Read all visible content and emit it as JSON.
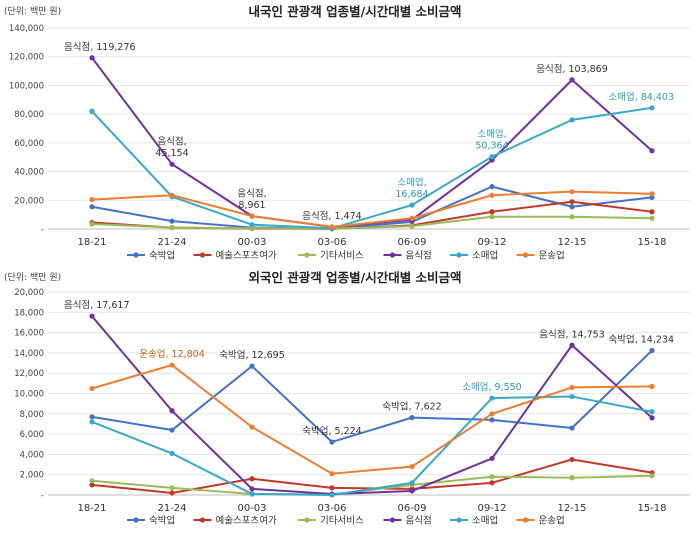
{
  "chart_data": [
    {
      "type": "line",
      "title": "내국인 관광객 업종별/시간대별 소비금액",
      "unit_label": "(단위: 백만 원)",
      "categories": [
        "18-21",
        "21-24",
        "00-03",
        "03-06",
        "06-09",
        "09-12",
        "12-15",
        "15-18"
      ],
      "ylim": [
        0,
        140000
      ],
      "yticks": [
        0,
        20000,
        40000,
        60000,
        80000,
        100000,
        120000,
        140000
      ],
      "ytick_labels": [
        "-",
        "20,000",
        "40,000",
        "60,000",
        "80,000",
        "100,000",
        "120,000",
        "140,000"
      ],
      "grid": true,
      "legend_position": "bottom",
      "series": [
        {
          "name": "숙박업",
          "color": "#4472c4",
          "values": [
            15500,
            5500,
            1000,
            300,
            5000,
            29500,
            15500,
            22000
          ]
        },
        {
          "name": "예술스포츠여가",
          "color": "#c0392b",
          "values": [
            4500,
            1000,
            300,
            100,
            2500,
            12000,
            19000,
            12000
          ]
        },
        {
          "name": "기타서비스",
          "color": "#9bbb59",
          "values": [
            3500,
            1000,
            500,
            200,
            2000,
            8500,
            8500,
            7500
          ]
        },
        {
          "name": "음식점",
          "color": "#7030a0",
          "values": [
            119276,
            45154,
            8961,
            1474,
            6500,
            48000,
            103869,
            54500
          ]
        },
        {
          "name": "소매업",
          "color": "#38a8c9",
          "values": [
            82000,
            22500,
            3000,
            500,
            16684,
            50364,
            76000,
            84403
          ]
        },
        {
          "name": "운송업",
          "color": "#ed7d31",
          "values": [
            20500,
            23500,
            9000,
            1500,
            7500,
            23500,
            26000,
            24500
          ]
        }
      ],
      "annotations": [
        {
          "category": "18-21",
          "value": 119276,
          "color": "#333333",
          "lines": [
            "음식점, 119,276"
          ]
        },
        {
          "category": "21-24",
          "value": 45154,
          "color": "#333333",
          "lines": [
            "음식점,",
            "45,154"
          ]
        },
        {
          "category": "00-03",
          "value": 8961,
          "color": "#333333",
          "lines": [
            "음식점,",
            "8,961"
          ]
        },
        {
          "category": "03-06",
          "value": 1474,
          "color": "#333333",
          "lines": [
            "음식점, 1,474"
          ]
        },
        {
          "category": "06-09",
          "value": 16684,
          "color": "#2e9ab8",
          "lines": [
            "소매업,",
            "16,684"
          ]
        },
        {
          "category": "09-12",
          "value": 50364,
          "color": "#2e9ab8",
          "lines": [
            "소매업,",
            "50,364"
          ]
        },
        {
          "category": "12-15",
          "value": 103869,
          "color": "#333333",
          "lines": [
            "음식점, 103,869"
          ]
        },
        {
          "category": "15-18",
          "value": 84403,
          "color": "#2e9ab8",
          "lines": [
            "소매업, 84,403"
          ]
        }
      ]
    },
    {
      "type": "line",
      "title": "외국인 관광객 업종별/시간대별 소비금액",
      "unit_label": "(단위: 백만 원)",
      "categories": [
        "18-21",
        "21-24",
        "00-03",
        "03-06",
        "06-09",
        "09-12",
        "12-15",
        "15-18"
      ],
      "ylim": [
        0,
        20000
      ],
      "yticks": [
        0,
        2000,
        4000,
        6000,
        8000,
        10000,
        12000,
        14000,
        16000,
        18000,
        20000
      ],
      "ytick_labels": [
        "-",
        "2,000",
        "4,000",
        "6,000",
        "8,000",
        "10,000",
        "12,000",
        "14,000",
        "16,000",
        "18,000",
        "20,000"
      ],
      "grid": true,
      "legend_position": "bottom",
      "series": [
        {
          "name": "숙박업",
          "color": "#4472c4",
          "values": [
            7700,
            6400,
            12695,
            5224,
            7622,
            7400,
            6600,
            14234
          ]
        },
        {
          "name": "예술스포츠여가",
          "color": "#c0392b",
          "values": [
            1000,
            200,
            1600,
            700,
            600,
            1200,
            3500,
            2200
          ]
        },
        {
          "name": "기타서비스",
          "color": "#9bbb59",
          "values": [
            1400,
            700,
            100,
            50,
            1000,
            1800,
            1700,
            1900
          ]
        },
        {
          "name": "음식점",
          "color": "#7030a0",
          "values": [
            17617,
            8300,
            600,
            100,
            400,
            3600,
            14753,
            7600
          ]
        },
        {
          "name": "소매업",
          "color": "#38a8c9",
          "values": [
            7200,
            4100,
            100,
            0,
            1200,
            9550,
            9700,
            8200
          ]
        },
        {
          "name": "운송업",
          "color": "#ed7d31",
          "values": [
            10500,
            12804,
            6700,
            2100,
            2800,
            8000,
            10600,
            10700
          ]
        }
      ],
      "annotations": [
        {
          "category": "18-21",
          "value": 17617,
          "color": "#333333",
          "lines": [
            "음식점, 17,617"
          ]
        },
        {
          "category": "21-24",
          "value": 12804,
          "color": "#c0641c",
          "lines": [
            "운송업, 12,804"
          ]
        },
        {
          "category": "00-03",
          "value": 12695,
          "color": "#333333",
          "lines": [
            "숙박업, 12,695"
          ]
        },
        {
          "category": "03-06",
          "value": 5224,
          "color": "#333333",
          "lines": [
            "숙박업, 5,224"
          ]
        },
        {
          "category": "06-09",
          "value": 7622,
          "color": "#333333",
          "lines": [
            "숙박업, 7,622"
          ]
        },
        {
          "category": "09-12",
          "value": 9550,
          "color": "#2e9ab8",
          "lines": [
            "소매업, 9,550"
          ]
        },
        {
          "category": "12-15",
          "value": 14753,
          "color": "#333333",
          "lines": [
            "음식점, 14,753"
          ]
        },
        {
          "category": "15-18",
          "value": 14234,
          "color": "#333333",
          "lines": [
            "숙박업, 14,234"
          ]
        }
      ]
    }
  ]
}
